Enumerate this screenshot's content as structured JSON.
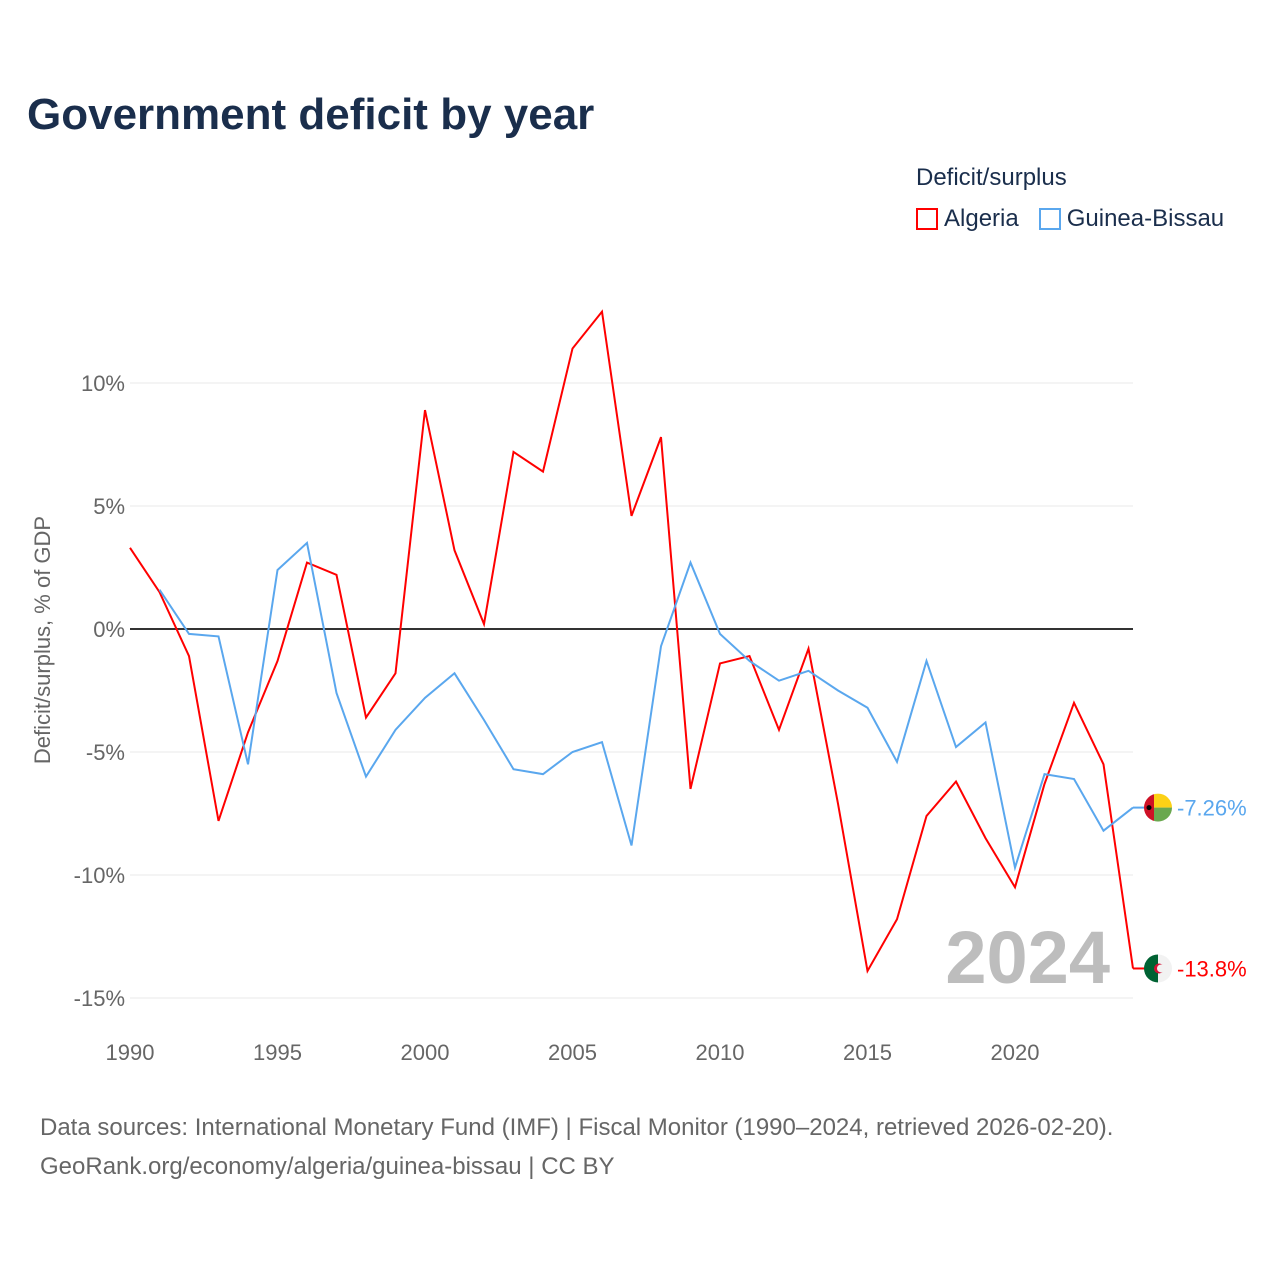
{
  "title": "Government deficit by year",
  "legend": {
    "title": "Deficit/surplus",
    "items": [
      {
        "label": "Algeria",
        "color": "#ff0000"
      },
      {
        "label": "Guinea-Bissau",
        "color": "#5aa7ee"
      }
    ]
  },
  "year_watermark": "2024",
  "footer": {
    "line1": "Data sources: International Monetary Fund (IMF) | Fiscal Monitor (1990–2024, retrieved 2026-02-20).",
    "line2": "GeoRank.org/economy/algeria/guinea-bissau | CC BY"
  },
  "chart_data": {
    "type": "line",
    "title": "Government deficit by year",
    "xlabel": "",
    "ylabel": "Deficit/surplus, % of GDP",
    "xlim": [
      1990,
      2024
    ],
    "ylim": [
      -15,
      13
    ],
    "x_ticks": [
      1990,
      1995,
      2000,
      2005,
      2010,
      2015,
      2020
    ],
    "x_tick_labels": [
      "1990",
      "1995",
      "2000",
      "2005",
      "2010",
      "2015",
      "2020"
    ],
    "y_ticks": [
      10,
      5,
      0,
      -5,
      -10,
      -15
    ],
    "y_tick_labels": [
      "10%",
      "5%",
      "0%",
      "-5%",
      "-10%",
      "-15%"
    ],
    "grid": true,
    "legend_position": "top-right",
    "series": [
      {
        "name": "Algeria",
        "color": "#ff0000",
        "end_label": "-13.8%",
        "x": [
          1990,
          1991,
          1992,
          1993,
          1994,
          1995,
          1996,
          1997,
          1998,
          1999,
          2000,
          2001,
          2002,
          2003,
          2004,
          2005,
          2006,
          2007,
          2008,
          2009,
          2010,
          2011,
          2012,
          2013,
          2014,
          2015,
          2016,
          2017,
          2018,
          2019,
          2020,
          2021,
          2022,
          2023,
          2024
        ],
        "values": [
          3.3,
          1.5,
          -1.1,
          -7.8,
          -4.2,
          -1.3,
          2.7,
          2.2,
          -3.6,
          -1.8,
          8.9,
          3.2,
          0.2,
          7.2,
          6.4,
          11.4,
          12.9,
          4.6,
          7.8,
          -6.5,
          -1.4,
          -1.1,
          -4.1,
          -0.8,
          -7.1,
          -13.9,
          -11.8,
          -7.6,
          -6.2,
          -8.5,
          -10.5,
          -6.3,
          -3.0,
          -5.5,
          -13.8
        ]
      },
      {
        "name": "Guinea-Bissau",
        "color": "#5aa7ee",
        "end_label": "-7.26%",
        "x": [
          1991,
          1992,
          1993,
          1994,
          1995,
          1996,
          1997,
          1998,
          1999,
          2000,
          2001,
          2002,
          2003,
          2004,
          2005,
          2006,
          2007,
          2008,
          2009,
          2010,
          2011,
          2012,
          2013,
          2014,
          2015,
          2016,
          2017,
          2018,
          2019,
          2020,
          2021,
          2022,
          2023,
          2024
        ],
        "values": [
          1.6,
          -0.2,
          -0.3,
          -5.5,
          2.4,
          3.5,
          -2.6,
          -6.0,
          -4.1,
          -2.8,
          -1.8,
          -3.7,
          -5.7,
          -5.9,
          -5.0,
          -4.6,
          -8.8,
          -0.7,
          2.7,
          -0.2,
          -1.3,
          -2.1,
          -1.7,
          -2.5,
          -3.2,
          -5.4,
          -1.3,
          -4.8,
          -3.8,
          -9.7,
          -5.9,
          -6.1,
          -8.2,
          -7.26
        ]
      }
    ]
  }
}
